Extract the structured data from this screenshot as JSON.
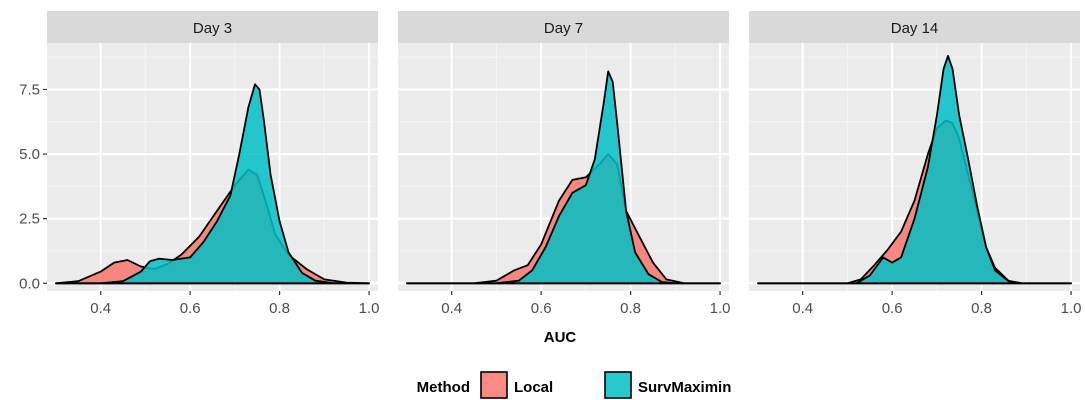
{
  "chart_data": {
    "type": "area",
    "subtype": "faceted density",
    "facets": [
      "Day 3",
      "Day 7",
      "Day 14"
    ],
    "xlabel": "AUC",
    "ylabel": "",
    "xlim": [
      0.28,
      1.02
    ],
    "ylim": [
      -0.3,
      9.3
    ],
    "x_ticks": [
      0.4,
      0.6,
      0.8,
      1.0
    ],
    "x_tick_labels": [
      "0.4",
      "0.6",
      "0.8",
      "1.0"
    ],
    "y_ticks": [
      0,
      2.5,
      5,
      7.5
    ],
    "y_tick_labels": [
      "0.0",
      "2.5",
      "5.0",
      "7.5"
    ],
    "grid": true,
    "legend": {
      "title": "Method",
      "position": "bottom",
      "entries": [
        {
          "label": "Local",
          "color": "#F8766D"
        },
        {
          "label": "SurvMaximin",
          "color": "#00BFC4"
        }
      ]
    },
    "panels": [
      {
        "facet": "Day 3",
        "series": [
          {
            "name": "Local",
            "color": "#F8766D",
            "x": [
              0.3,
              0.35,
              0.4,
              0.43,
              0.46,
              0.49,
              0.52,
              0.55,
              0.58,
              0.62,
              0.66,
              0.7,
              0.73,
              0.75,
              0.77,
              0.79,
              0.82,
              0.86,
              0.9,
              0.95,
              1.0
            ],
            "y": [
              0.0,
              0.08,
              0.45,
              0.8,
              0.9,
              0.65,
              0.55,
              0.75,
              1.1,
              1.8,
              2.8,
              3.8,
              4.4,
              4.2,
              3.1,
              1.9,
              1.1,
              0.55,
              0.15,
              0.02,
              0.0
            ]
          },
          {
            "name": "SurvMaximin",
            "color": "#00BFC4",
            "x": [
              0.3,
              0.4,
              0.45,
              0.49,
              0.51,
              0.53,
              0.56,
              0.6,
              0.63,
              0.66,
              0.69,
              0.71,
              0.73,
              0.745,
              0.755,
              0.765,
              0.78,
              0.8,
              0.82,
              0.85,
              0.88,
              0.92,
              1.0
            ],
            "y": [
              0.0,
              0.0,
              0.08,
              0.45,
              0.85,
              0.95,
              0.9,
              1.0,
              1.6,
              2.4,
              3.4,
              5.0,
              6.8,
              7.7,
              7.5,
              6.3,
              4.2,
              2.4,
              1.2,
              0.4,
              0.1,
              0.0,
              0.0
            ]
          }
        ]
      },
      {
        "facet": "Day 7",
        "series": [
          {
            "name": "Local",
            "color": "#F8766D",
            "x": [
              0.3,
              0.45,
              0.5,
              0.54,
              0.57,
              0.6,
              0.64,
              0.67,
              0.7,
              0.73,
              0.75,
              0.77,
              0.79,
              0.82,
              0.85,
              0.88,
              0.92,
              1.0
            ],
            "y": [
              0.0,
              0.0,
              0.1,
              0.5,
              0.7,
              1.5,
              3.2,
              4.0,
              4.1,
              4.6,
              5.0,
              4.6,
              2.8,
              1.8,
              0.8,
              0.15,
              0.0,
              0.0
            ]
          },
          {
            "name": "SurvMaximin",
            "color": "#00BFC4",
            "x": [
              0.3,
              0.5,
              0.55,
              0.58,
              0.61,
              0.64,
              0.67,
              0.7,
              0.72,
              0.74,
              0.75,
              0.76,
              0.77,
              0.79,
              0.81,
              0.84,
              0.87,
              0.9,
              1.0
            ],
            "y": [
              0.0,
              0.0,
              0.1,
              0.5,
              1.4,
              2.6,
              3.5,
              3.8,
              4.8,
              7.0,
              8.2,
              7.8,
              6.2,
              2.8,
              1.2,
              0.35,
              0.05,
              0.0,
              0.0
            ]
          }
        ]
      },
      {
        "facet": "Day 14",
        "series": [
          {
            "name": "Local",
            "color": "#F8766D",
            "x": [
              0.3,
              0.5,
              0.53,
              0.56,
              0.59,
              0.62,
              0.65,
              0.68,
              0.7,
              0.72,
              0.735,
              0.75,
              0.77,
              0.79,
              0.81,
              0.83,
              0.86,
              0.89,
              1.0
            ],
            "y": [
              0.0,
              0.0,
              0.15,
              0.7,
              1.3,
              2.0,
              3.2,
              5.0,
              6.0,
              6.3,
              6.2,
              5.6,
              4.2,
              2.8,
              1.4,
              0.6,
              0.1,
              0.0,
              0.0
            ]
          },
          {
            "name": "SurvMaximin",
            "color": "#00BFC4",
            "x": [
              0.3,
              0.52,
              0.55,
              0.58,
              0.6,
              0.62,
              0.65,
              0.68,
              0.7,
              0.715,
              0.725,
              0.735,
              0.75,
              0.77,
              0.79,
              0.81,
              0.83,
              0.86,
              0.89,
              1.0
            ],
            "y": [
              0.0,
              0.0,
              0.3,
              1.0,
              0.8,
              1.0,
              2.5,
              4.5,
              6.5,
              8.3,
              8.8,
              8.3,
              6.5,
              4.8,
              3.0,
              1.4,
              0.5,
              0.08,
              0.0,
              0.0
            ]
          }
        ]
      }
    ]
  }
}
